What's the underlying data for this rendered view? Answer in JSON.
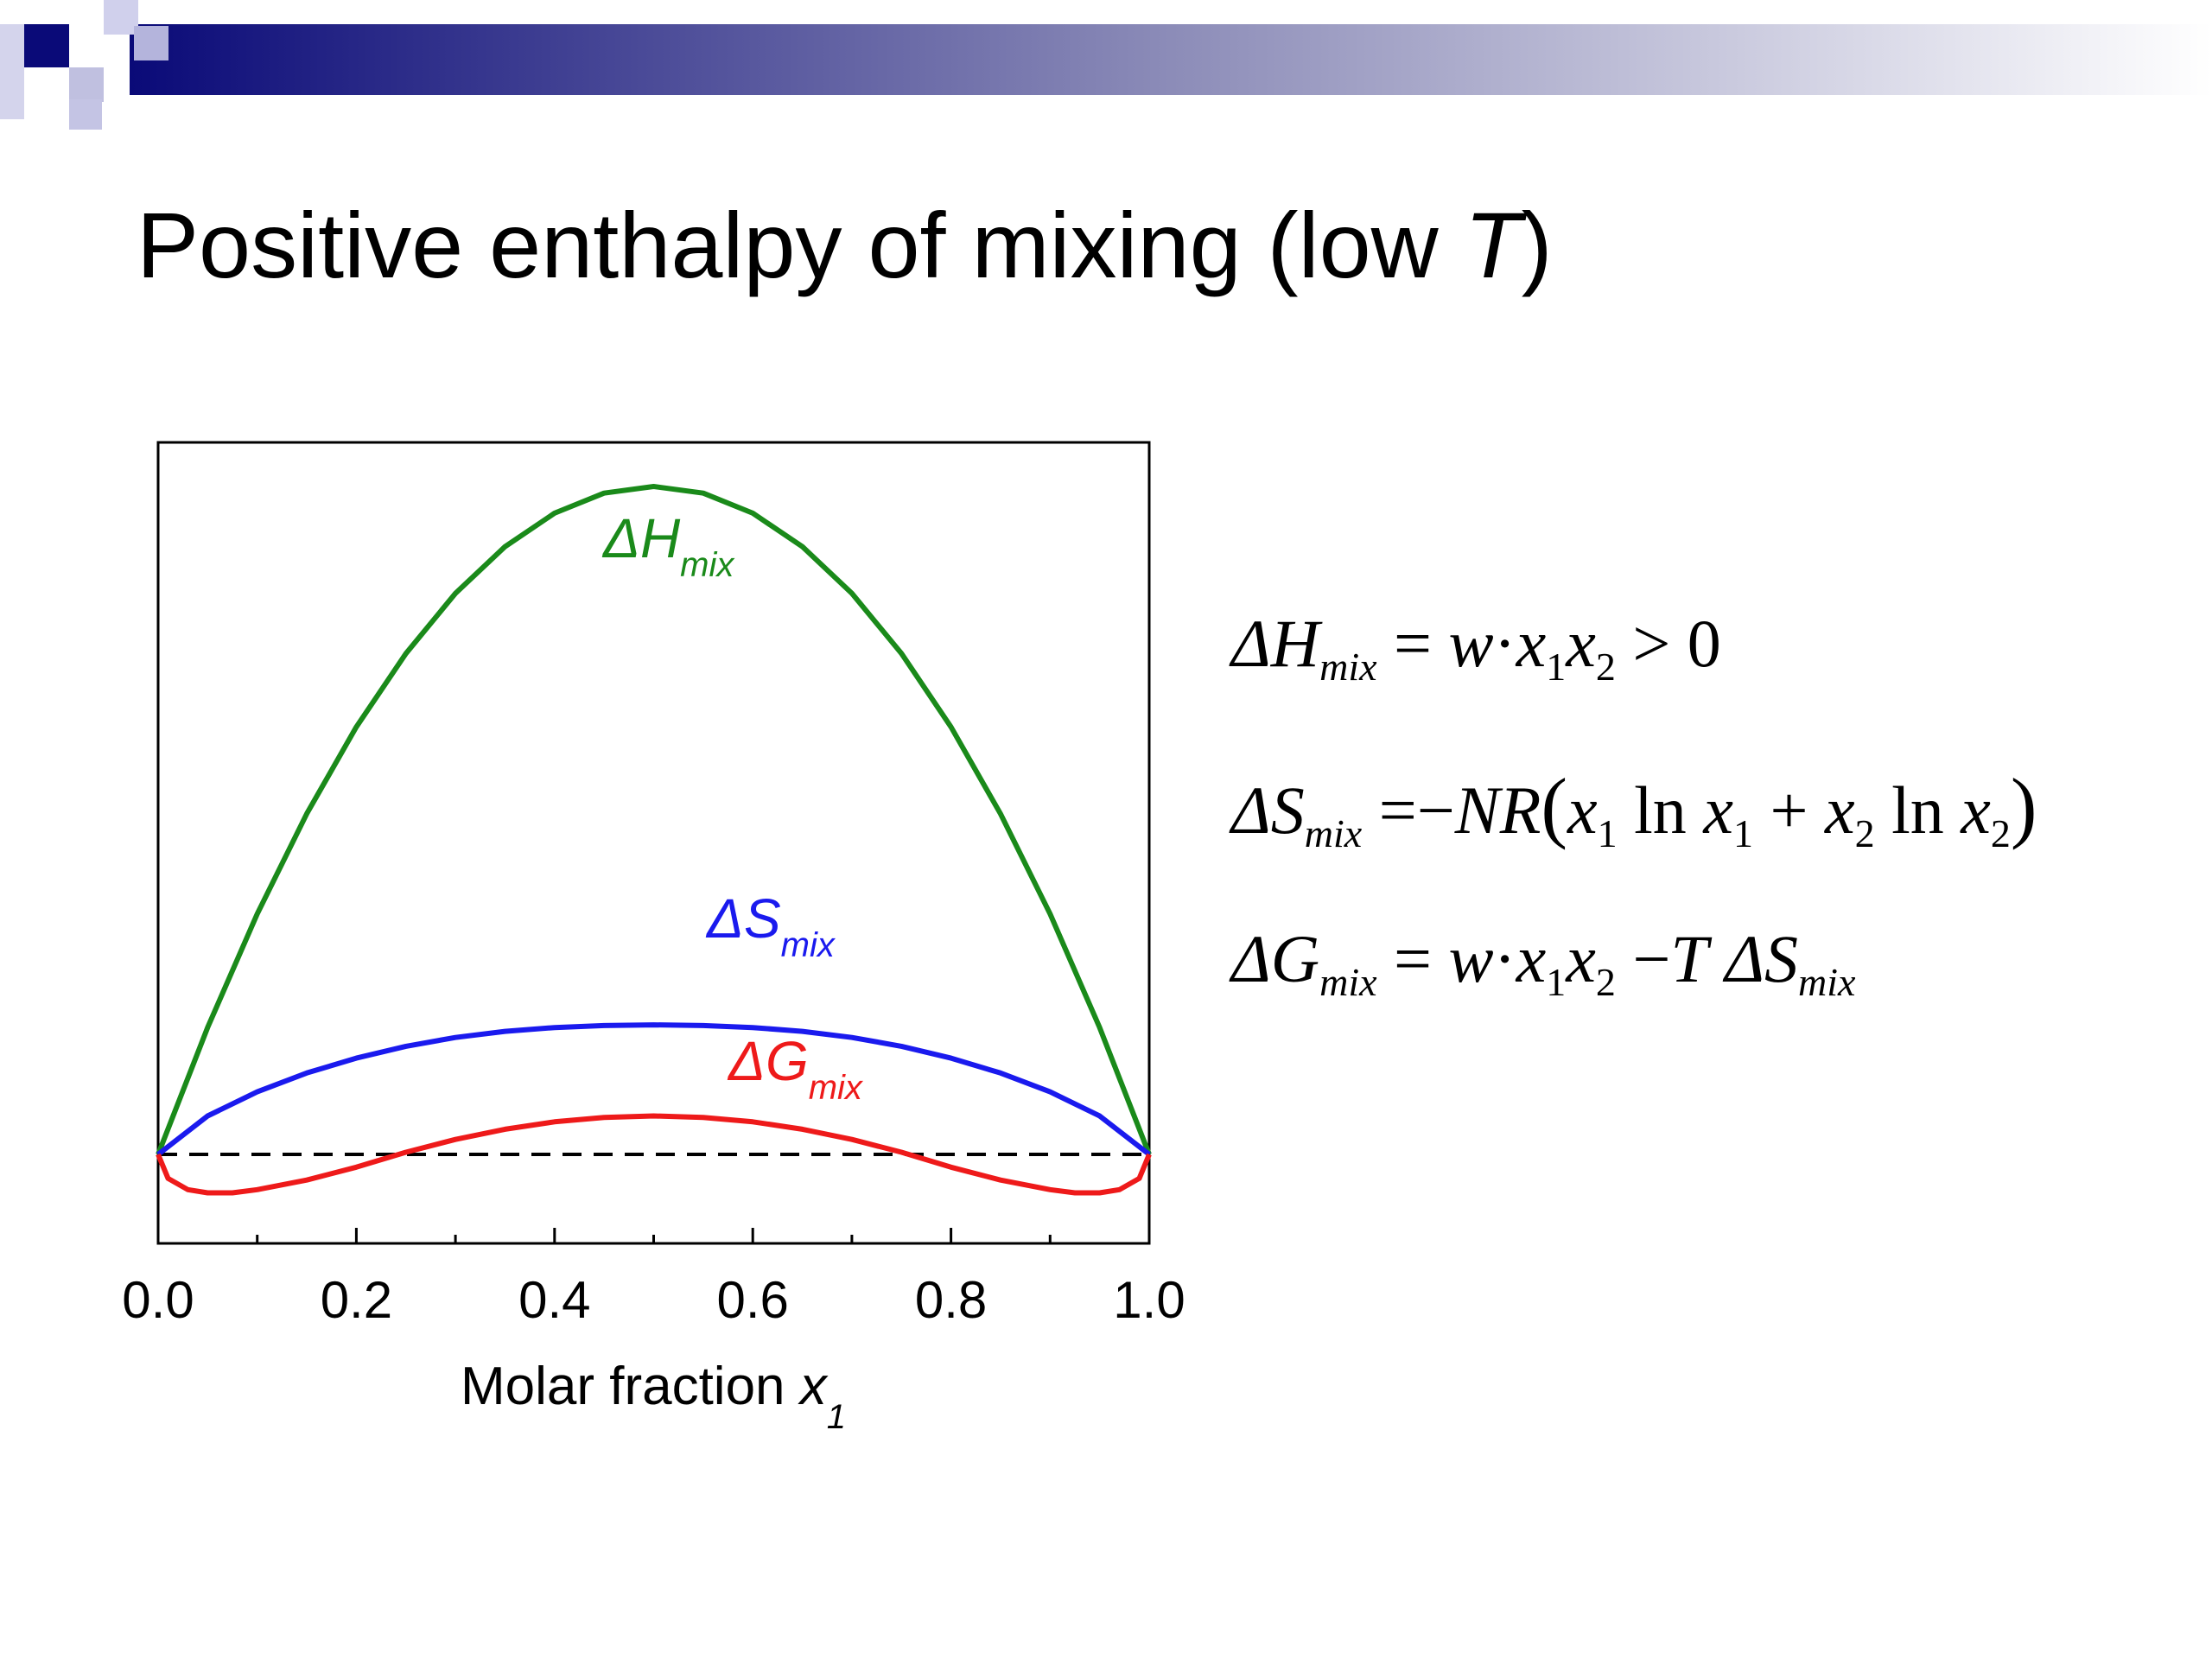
{
  "slide": {
    "title_main": "Positive enthalpy of mixing (low ",
    "title_var": "T",
    "title_close": ")",
    "colors": {
      "deco_dark": "#0a0a78",
      "deco_light": "#c8c8e8",
      "deco_mid": "#9696c8"
    }
  },
  "equations": {
    "h": {
      "delta": "Δ",
      "sym": "H",
      "sub": "mix",
      "rhs_eq": "=",
      "w": "w",
      "dot": "·",
      "x1": "x",
      "s1": "1",
      "x2": "x",
      "s2": "2",
      "tail": " > 0"
    },
    "s": {
      "delta": "Δ",
      "sym": "S",
      "sub": "mix",
      "rhs_eq": "=",
      "minus": "−",
      "NR": "NR",
      "lparen": "(",
      "x1a": "x",
      "s1a": "1",
      "ln1": " ln ",
      "x1b": "x",
      "s1b": "1",
      "plus": " + ",
      "x2a": "x",
      "s2a": "2",
      "ln2": " ln ",
      "x2b": "x",
      "s2b": "2",
      "rparen": ")"
    },
    "g": {
      "delta": "Δ",
      "sym": "G",
      "sub": "mix",
      "rhs_eq": "=",
      "w": "w",
      "dot": "·",
      "x1": "x",
      "s1": "1",
      "x2": "x",
      "s2": "2",
      "minus": " −",
      "T": "T",
      "delta2": "Δ",
      "sym2": "S",
      "sub2": "mix"
    }
  },
  "chart_data": {
    "type": "line",
    "xlabel_main": "Molar fraction ",
    "xlabel_var": "x",
    "xlabel_sub": "1",
    "xlim": [
      0,
      1
    ],
    "ylim": [
      -0.1,
      1.35
    ],
    "xticks": [
      "0.0",
      "0.2",
      "0.4",
      "0.6",
      "0.8",
      "1.0"
    ],
    "xtick_values": [
      0,
      0.2,
      0.4,
      0.6,
      0.8,
      1.0
    ],
    "yticks": [],
    "grid": false,
    "baseline": {
      "y": 0,
      "style": "dashed",
      "color": "#000000"
    },
    "series": [
      {
        "name": "ΔH_mix",
        "label_delta": "Δ",
        "label_sym": "H",
        "label_sub": "mix",
        "color": "#1a8a1a",
        "x": [
          0,
          0.05,
          0.1,
          0.15,
          0.2,
          0.25,
          0.3,
          0.35,
          0.4,
          0.45,
          0.5,
          0.55,
          0.6,
          0.65,
          0.7,
          0.75,
          0.8,
          0.85,
          0.9,
          0.95,
          1.0
        ],
        "y": [
          0,
          0.2375,
          0.45,
          0.6375,
          0.8,
          0.9375,
          1.05,
          1.1375,
          1.2,
          1.2375,
          1.25,
          1.2375,
          1.2,
          1.1375,
          1.05,
          0.9375,
          0.8,
          0.6375,
          0.45,
          0.2375,
          0
        ]
      },
      {
        "name": "ΔS_mix",
        "label_delta": "Δ",
        "label_sym": "S",
        "label_sub": "mix",
        "color": "#1a1aee",
        "x": [
          0,
          0.05,
          0.1,
          0.15,
          0.2,
          0.25,
          0.3,
          0.35,
          0.4,
          0.45,
          0.5,
          0.55,
          0.6,
          0.65,
          0.7,
          0.75,
          0.8,
          0.85,
          0.9,
          0.95,
          1.0
        ],
        "y": [
          0,
          0.0719,
          0.1171,
          0.1524,
          0.1801,
          0.2023,
          0.2188,
          0.2303,
          0.2374,
          0.2411,
          0.2424,
          0.2411,
          0.2374,
          0.2303,
          0.2188,
          0.2023,
          0.1801,
          0.1524,
          0.1171,
          0.0719,
          0
        ]
      },
      {
        "name": "ΔG_mix",
        "label_delta": "Δ",
        "label_sym": "G",
        "label_sub": "mix",
        "color": "#ee1a1a",
        "x": [
          0,
          0.01,
          0.03,
          0.05,
          0.075,
          0.1,
          0.15,
          0.2,
          0.25,
          0.3,
          0.35,
          0.4,
          0.45,
          0.5,
          0.55,
          0.6,
          0.65,
          0.7,
          0.75,
          0.8,
          0.85,
          0.9,
          0.925,
          0.95,
          0.97,
          0.99,
          1.0
        ],
        "y": [
          0,
          -0.045,
          -0.066,
          -0.072,
          -0.072,
          -0.066,
          -0.048,
          -0.024,
          0.004,
          0.028,
          0.047,
          0.061,
          0.069,
          0.072,
          0.069,
          0.061,
          0.047,
          0.028,
          0.004,
          -0.024,
          -0.048,
          -0.066,
          -0.072,
          -0.072,
          -0.066,
          -0.045,
          0
        ]
      }
    ]
  }
}
